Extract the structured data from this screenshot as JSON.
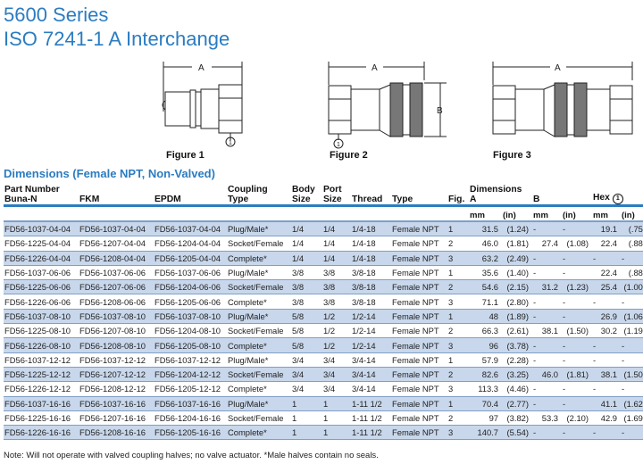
{
  "title": "5600 Series",
  "subtitle": "ISO 7241-1 A Interchange",
  "figures": [
    {
      "label": "Figure 1",
      "dim_a": "A",
      "hex_callout": "1"
    },
    {
      "label": "Figure 2",
      "dim_a": "A",
      "dim_b": "B",
      "hex_callout": "1"
    },
    {
      "label": "Figure 3",
      "dim_a": "A"
    }
  ],
  "section_title": "Dimensions (Female NPT, Non-Valved)",
  "headers": {
    "part_number": "Part Number",
    "buna": "Buna-N",
    "fkm": "FKM",
    "epdm": "EPDM",
    "coupling1": "Coupling",
    "coupling2": "Type",
    "body1": "Body",
    "body2": "Size",
    "port1": "Port",
    "port2": "Size",
    "thread": "Thread",
    "type": "Type",
    "fig": "Fig.",
    "dimensions": "Dimensions",
    "a": "A",
    "b": "B",
    "hex": "Hex",
    "hex_note": "1",
    "mm": "mm",
    "in": "(in)"
  },
  "rows": [
    [
      "FD56-1037-04-04",
      "FD56-1037-04-04",
      "FD56-1037-04-04",
      "Plug/Male*",
      "1/4",
      "1/4",
      "1/4-18",
      "Female NPT",
      "1",
      "31.5",
      "(1.24)",
      "-",
      "-",
      "19.1",
      "(.75)"
    ],
    [
      "FD56-1225-04-04",
      "FD56-1207-04-04",
      "FD56-1204-04-04",
      "Socket/Female",
      "1/4",
      "1/4",
      "1/4-18",
      "Female NPT",
      "2",
      "46.0",
      "(1.81)",
      "27.4",
      "(1.08)",
      "22.4",
      "(.88)"
    ],
    [
      "FD56-1226-04-04",
      "FD56-1208-04-04",
      "FD56-1205-04-04",
      "Complete*",
      "1/4",
      "1/4",
      "1/4-18",
      "Female NPT",
      "3",
      "63.2",
      "(2.49)",
      "-",
      "-",
      "-",
      "-"
    ],
    [
      "FD56-1037-06-06",
      "FD56-1037-06-06",
      "FD56-1037-06-06",
      "Plug/Male*",
      "3/8",
      "3/8",
      "3/8-18",
      "Female NPT",
      "1",
      "35.6",
      "(1.40)",
      "-",
      "-",
      "22.4",
      "(.88)"
    ],
    [
      "FD56-1225-06-06",
      "FD56-1207-06-06",
      "FD56-1204-06-06",
      "Socket/Female",
      "3/8",
      "3/8",
      "3/8-18",
      "Female NPT",
      "2",
      "54.6",
      "(2.15)",
      "31.2",
      "(1.23)",
      "25.4",
      "(1.00)"
    ],
    [
      "FD56-1226-06-06",
      "FD56-1208-06-06",
      "FD56-1205-06-06",
      "Complete*",
      "3/8",
      "3/8",
      "3/8-18",
      "Female NPT",
      "3",
      "71.1",
      "(2.80)",
      "-",
      "-",
      "-",
      "-"
    ],
    [
      "FD56-1037-08-10",
      "FD56-1037-08-10",
      "FD56-1037-08-10",
      "Plug/Male*",
      "5/8",
      "1/2",
      "1/2-14",
      "Female NPT",
      "1",
      "48",
      "(1.89)",
      "-",
      "-",
      "26.9",
      "(1.06)"
    ],
    [
      "FD56-1225-08-10",
      "FD56-1207-08-10",
      "FD56-1204-08-10",
      "Socket/Female",
      "5/8",
      "1/2",
      "1/2-14",
      "Female NPT",
      "2",
      "66.3",
      "(2.61)",
      "38.1",
      "(1.50)",
      "30.2",
      "(1.19)"
    ],
    [
      "FD56-1226-08-10",
      "FD56-1208-08-10",
      "FD56-1205-08-10",
      "Complete*",
      "5/8",
      "1/2",
      "1/2-14",
      "Female NPT",
      "3",
      "96",
      "(3.78)",
      "-",
      "-",
      "-",
      "-"
    ],
    [
      "FD56-1037-12-12",
      "FD56-1037-12-12",
      "FD56-1037-12-12",
      "Plug/Male*",
      "3/4",
      "3/4",
      "3/4-14",
      "Female NPT",
      "1",
      "57.9",
      "(2.28)",
      "-",
      "-",
      "-",
      "-"
    ],
    [
      "FD56-1225-12-12",
      "FD56-1207-12-12",
      "FD56-1204-12-12",
      "Socket/Female",
      "3/4",
      "3/4",
      "3/4-14",
      "Female NPT",
      "2",
      "82.6",
      "(3.25)",
      "46.0",
      "(1.81)",
      "38.1",
      "(1.50)"
    ],
    [
      "FD56-1226-12-12",
      "FD56-1208-12-12",
      "FD56-1205-12-12",
      "Complete*",
      "3/4",
      "3/4",
      "3/4-14",
      "Female NPT",
      "3",
      "113.3",
      "(4.46)",
      "-",
      "-",
      "-",
      "-"
    ],
    [
      "FD56-1037-16-16",
      "FD56-1037-16-16",
      "FD56-1037-16-16",
      "Plug/Male*",
      "1",
      "1",
      "1-11 1/2",
      "Female NPT",
      "1",
      "70.4",
      "(2.77)",
      "-",
      "-",
      "41.1",
      "(1.62)"
    ],
    [
      "FD56-1225-16-16",
      "FD56-1207-16-16",
      "FD56-1204-16-16",
      "Socket/Female",
      "1",
      "1",
      "1-11 1/2",
      "Female NPT",
      "2",
      "97",
      "(3.82)",
      "53.3",
      "(2.10)",
      "42.9",
      "(1.69)"
    ],
    [
      "FD56-1226-16-16",
      "FD56-1208-16-16",
      "FD56-1205-16-16",
      "Complete*",
      "1",
      "1",
      "1-11 1/2",
      "Female NPT",
      "3",
      "140.7",
      "(5.54)",
      "-",
      "-",
      "-",
      "-"
    ]
  ],
  "note": "Note: Will not operate with valved coupling halves; no valve actuator. *Male halves contain no seals.",
  "colors": {
    "accent": "#2b7cc1",
    "row_stripe": "#c8d7eb",
    "rule": "#7f9fc6"
  }
}
